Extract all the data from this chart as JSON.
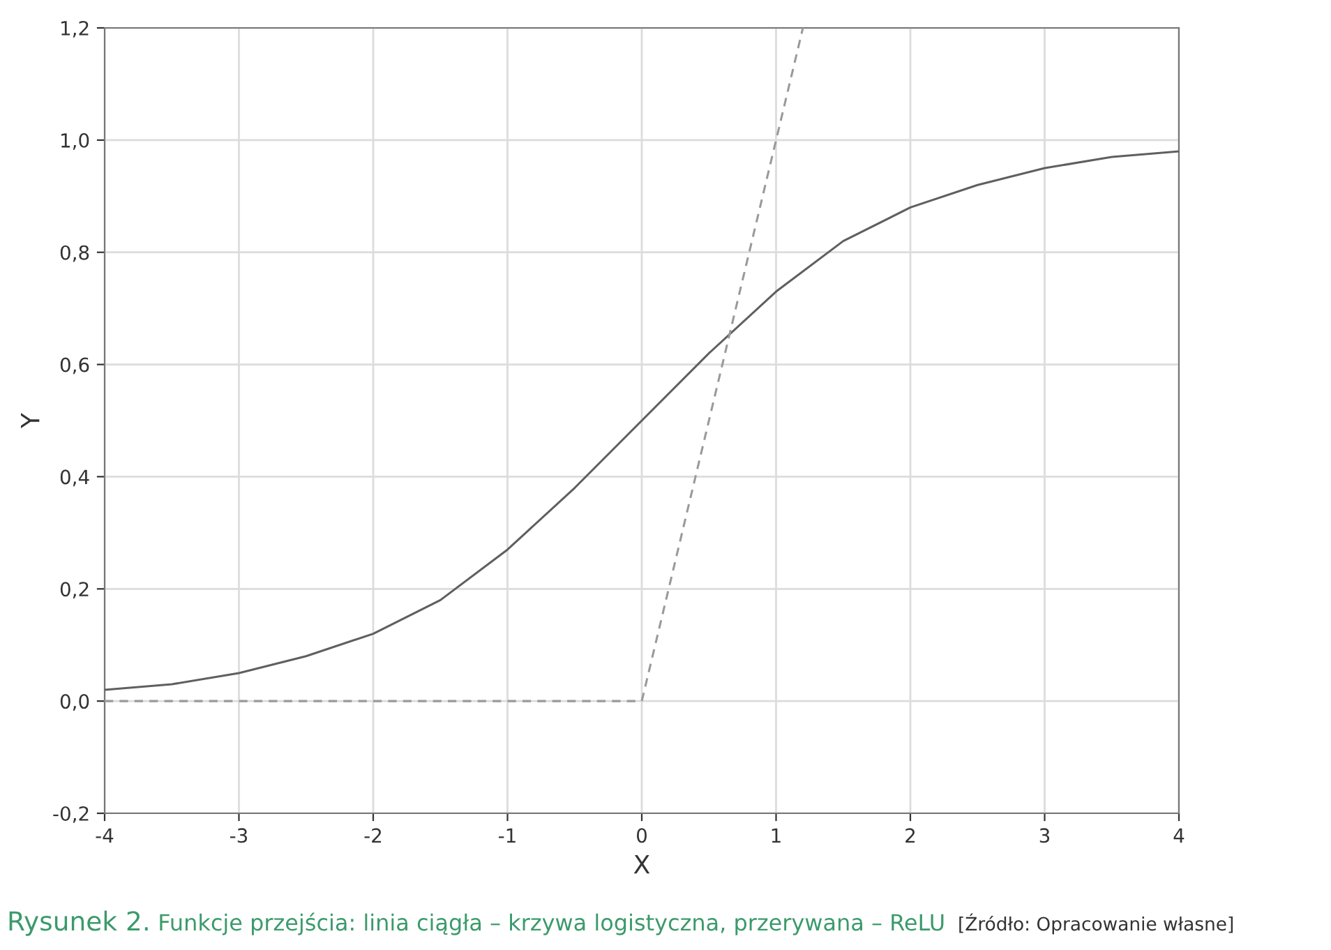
{
  "chart_data": {
    "type": "line",
    "xlabel": "X",
    "ylabel": "Y",
    "xlim": [
      -4,
      4
    ],
    "xticks": [
      -4,
      -3,
      -2,
      -1,
      0,
      1,
      2,
      3,
      4
    ],
    "ylim": [
      -0.2,
      1.2
    ],
    "yticks": [
      {
        "value": -0.2,
        "label": "-0,2"
      },
      {
        "value": 0.0,
        "label": "0,0"
      },
      {
        "value": 0.2,
        "label": "0,2"
      },
      {
        "value": 0.4,
        "label": "0,4"
      },
      {
        "value": 0.6,
        "label": "0,6"
      },
      {
        "value": 0.8,
        "label": "0,8"
      },
      {
        "value": 1.0,
        "label": "1,0"
      },
      {
        "value": 1.2,
        "label": "1,2"
      }
    ],
    "grid": true,
    "legend": false,
    "marker": "none",
    "series": [
      {
        "color": "#5f5f5f",
        "line_style": "solid",
        "x": [
          -4,
          -3.5,
          -3,
          -2.5,
          -2,
          -1.5,
          -1,
          -0.5,
          0,
          0.5,
          1,
          1.5,
          2,
          2.5,
          3,
          3.5,
          4
        ],
        "values": [
          0.02,
          0.03,
          0.05,
          0.08,
          0.12,
          0.18,
          0.27,
          0.38,
          0.5,
          0.62,
          0.73,
          0.82,
          0.88,
          0.92,
          0.95,
          0.97,
          0.98
        ]
      },
      {
        "color": "#9a9a9a",
        "line_style": "dashed",
        "x": [
          -4,
          0,
          1.2
        ],
        "values": [
          0,
          0,
          1.2
        ]
      }
    ],
    "annotations": [
      "Rysunek 2.",
      "Funkcje przejścia: linia ciągła – krzywa logistyczna, przerywana – ReLU",
      "[Źródło: Opracowanie własne]"
    ]
  }
}
